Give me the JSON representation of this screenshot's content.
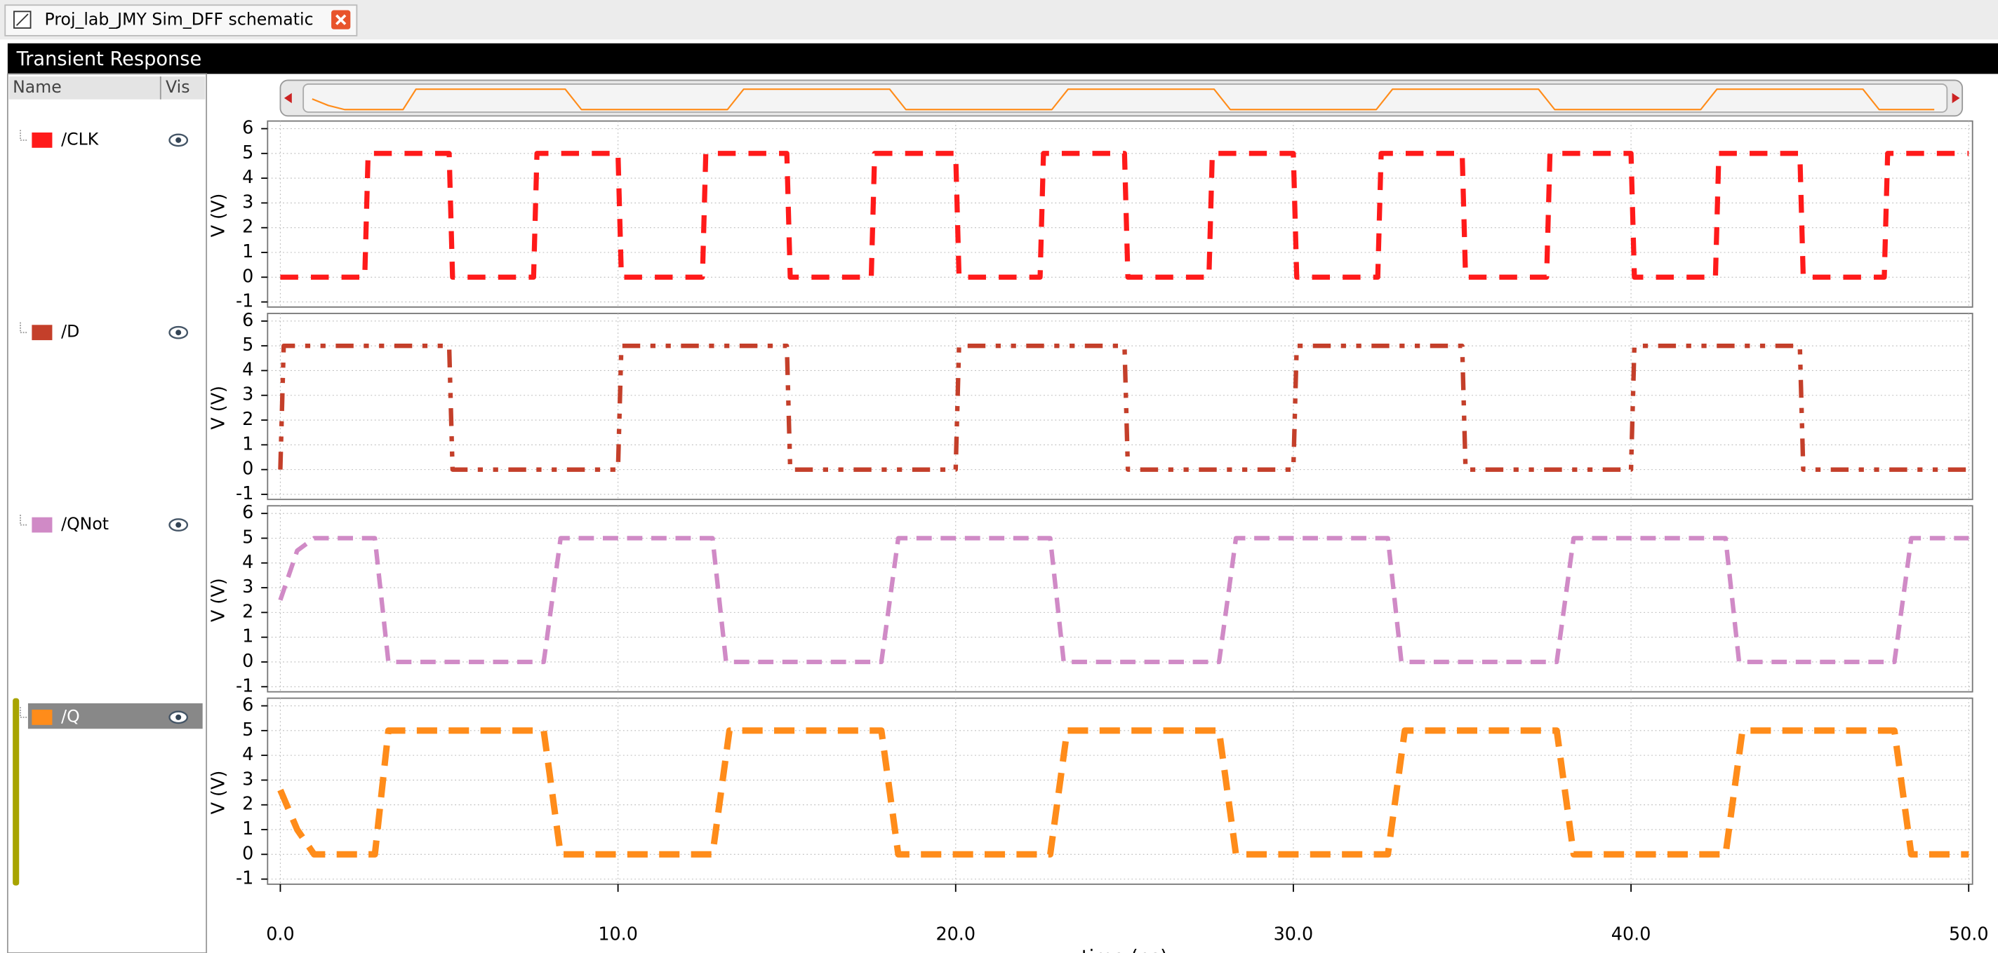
{
  "window": {
    "tab_title": "Proj_lab_JMY Sim_DFF schematic"
  },
  "panel": {
    "title": "Transient Response",
    "columns": [
      "Name",
      "Vis"
    ]
  },
  "chart_data": [
    {
      "type": "line",
      "ylabel": "V (V)",
      "xlim": [
        0,
        50
      ],
      "ylim": [
        -1,
        6
      ],
      "yticks": [
        -1,
        0,
        1,
        2,
        3,
        4,
        5,
        6
      ],
      "grid": true,
      "x": [
        0,
        2.5,
        2.6,
        5,
        5.1,
        7.5,
        7.6,
        10,
        10.1,
        12.5,
        12.6,
        15,
        15.1,
        17.5,
        17.6,
        20,
        20.1,
        22.5,
        22.6,
        25,
        25.1,
        27.5,
        27.6,
        30,
        30.1,
        32.5,
        32.6,
        35,
        35.1,
        37.5,
        37.6,
        40,
        40.1,
        42.5,
        42.6,
        45,
        45.1,
        47.5,
        47.6,
        50
      ],
      "series": [
        {
          "name": "/CLK",
          "color": "#ff1a1a",
          "values": [
            0,
            0,
            5,
            5,
            0,
            0,
            5,
            5,
            0,
            0,
            5,
            5,
            0,
            0,
            5,
            5,
            0,
            0,
            5,
            5,
            0,
            0,
            5,
            5,
            0,
            0,
            5,
            5,
            0,
            0,
            5,
            5,
            0,
            0,
            5,
            5,
            0,
            0,
            5,
            5
          ]
        }
      ]
    },
    {
      "type": "line",
      "ylabel": "V (V)",
      "xlim": [
        0,
        50
      ],
      "ylim": [
        -1,
        6
      ],
      "yticks": [
        -1,
        0,
        1,
        2,
        3,
        4,
        5,
        6
      ],
      "grid": true,
      "x": [
        0,
        0.1,
        5,
        5.1,
        10,
        10.1,
        15,
        15.1,
        20,
        20.1,
        25,
        25.1,
        30,
        30.1,
        35,
        35.1,
        40,
        40.1,
        45,
        45.1,
        50
      ],
      "series": [
        {
          "name": "/D",
          "color": "#c43f2a",
          "values": [
            0,
            5,
            5,
            0,
            0,
            5,
            5,
            0,
            0,
            5,
            5,
            0,
            0,
            5,
            5,
            0,
            0,
            5,
            5,
            0,
            0
          ]
        }
      ]
    },
    {
      "type": "line",
      "ylabel": "V (V)",
      "xlim": [
        0,
        50
      ],
      "ylim": [
        -1,
        6
      ],
      "yticks": [
        -1,
        0,
        1,
        2,
        3,
        4,
        5,
        6
      ],
      "grid": true,
      "x": [
        0,
        0.5,
        1,
        2.8,
        3.2,
        7.8,
        8.3,
        12.8,
        13.2,
        17.8,
        18.3,
        22.8,
        23.2,
        27.8,
        28.3,
        32.8,
        33.2,
        37.8,
        38.3,
        42.8,
        43.2,
        47.8,
        48.3,
        50
      ],
      "series": [
        {
          "name": "/QNot",
          "color": "#d08ac6",
          "values": [
            2.5,
            4.5,
            5,
            5,
            0,
            0,
            5,
            5,
            0,
            0,
            5,
            5,
            0,
            0,
            5,
            5,
            0,
            0,
            5,
            5,
            0,
            0,
            5,
            5
          ]
        }
      ]
    },
    {
      "type": "line",
      "ylabel": "V (V)",
      "xlabel": "time (ns)",
      "xlim": [
        0,
        50
      ],
      "ylim": [
        -1,
        6
      ],
      "yticks": [
        -1,
        0,
        1,
        2,
        3,
        4,
        5,
        6
      ],
      "grid": true,
      "xticks": [
        {
          "value": 0,
          "label": "0.0"
        },
        {
          "value": 10,
          "label": "10.0"
        },
        {
          "value": 20,
          "label": "20.0"
        },
        {
          "value": 30,
          "label": "30.0"
        },
        {
          "value": 40,
          "label": "40.0"
        },
        {
          "value": 50,
          "label": "50.0"
        }
      ],
      "x": [
        0,
        0.5,
        1,
        2.8,
        3.2,
        7.8,
        8.3,
        12.8,
        13.3,
        17.8,
        18.3,
        22.8,
        23.3,
        27.8,
        28.3,
        32.8,
        33.3,
        37.8,
        38.3,
        42.8,
        43.3,
        47.8,
        48.3,
        50
      ],
      "series": [
        {
          "name": "/Q",
          "color": "#ff8c1a",
          "values": [
            2.6,
            1,
            0,
            0,
            5,
            5,
            0,
            0,
            5,
            5,
            0,
            0,
            5,
            5,
            0,
            0,
            5,
            5,
            0,
            0,
            5,
            5,
            0,
            0
          ]
        }
      ]
    }
  ]
}
